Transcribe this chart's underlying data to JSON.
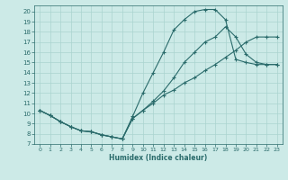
{
  "title": "",
  "xlabel": "Humidex (Indice chaleur)",
  "background_color": "#cceae7",
  "line_color": "#2a6b6b",
  "grid_color": "#aad4d0",
  "xlim": [
    -0.5,
    23.5
  ],
  "ylim": [
    7,
    20.6
  ],
  "xticks": [
    0,
    1,
    2,
    3,
    4,
    5,
    6,
    7,
    8,
    9,
    10,
    11,
    12,
    13,
    14,
    15,
    16,
    17,
    18,
    19,
    20,
    21,
    22,
    23
  ],
  "yticks": [
    7,
    8,
    9,
    10,
    11,
    12,
    13,
    14,
    15,
    16,
    17,
    18,
    19,
    20
  ],
  "line1_x": [
    0,
    1,
    2,
    3,
    4,
    5,
    6,
    7,
    8,
    9,
    10,
    11,
    12,
    13,
    14,
    15,
    16,
    17,
    18,
    19,
    20,
    21,
    22,
    23
  ],
  "line1_y": [
    10.3,
    9.8,
    9.2,
    8.7,
    8.3,
    8.2,
    7.9,
    7.7,
    7.5,
    9.7,
    12.0,
    14.0,
    16.0,
    18.2,
    19.2,
    20.0,
    20.2,
    20.2,
    19.2,
    15.3,
    15.0,
    14.8,
    14.8,
    14.8
  ],
  "line2_x": [
    0,
    1,
    2,
    3,
    4,
    5,
    6,
    7,
    8,
    9,
    10,
    11,
    12,
    13,
    14,
    15,
    16,
    17,
    18,
    19,
    20,
    21,
    22,
    23
  ],
  "line2_y": [
    10.3,
    9.8,
    9.2,
    8.7,
    8.3,
    8.2,
    7.9,
    7.7,
    7.5,
    9.5,
    10.3,
    11.2,
    12.2,
    13.5,
    15.0,
    16.0,
    17.0,
    17.5,
    18.5,
    17.5,
    15.8,
    15.0,
    14.8,
    14.8
  ],
  "line3_x": [
    0,
    1,
    2,
    3,
    4,
    5,
    6,
    7,
    8,
    9,
    10,
    11,
    12,
    13,
    14,
    15,
    16,
    17,
    18,
    19,
    20,
    21,
    22,
    23
  ],
  "line3_y": [
    10.3,
    9.8,
    9.2,
    8.7,
    8.3,
    8.2,
    7.9,
    7.7,
    7.5,
    9.5,
    10.3,
    11.0,
    11.8,
    12.3,
    13.0,
    13.5,
    14.2,
    14.8,
    15.5,
    16.2,
    17.0,
    17.5,
    17.5,
    17.5
  ]
}
